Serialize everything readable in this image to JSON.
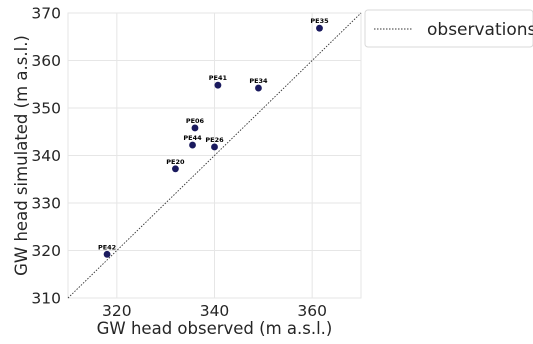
{
  "chart_data": {
    "type": "scatter",
    "title": "",
    "xlabel": "GW head observed (m a.s.l.)",
    "ylabel": "GW head simulated (m a.s.l.)",
    "xlim": [
      310,
      370
    ],
    "ylim": [
      310,
      370
    ],
    "x_ticks": [
      "320",
      "340",
      "360"
    ],
    "y_ticks": [
      "310",
      "320",
      "330",
      "340",
      "350",
      "360",
      "370"
    ],
    "grid": true,
    "legend": {
      "placement": "top-right, outside plot area",
      "entries": [
        {
          "label": "observations",
          "style": "dashed line"
        }
      ]
    },
    "identity_line": {
      "from": [
        310,
        310
      ],
      "to": [
        370,
        370
      ],
      "style": "dashed"
    },
    "point_color": "#1a1a5e",
    "points": [
      {
        "label": "PE42",
        "x": 318.0,
        "y": 319.2
      },
      {
        "label": "PE20",
        "x": 332.0,
        "y": 337.2
      },
      {
        "label": "PE44",
        "x": 335.5,
        "y": 342.2
      },
      {
        "label": "PE06",
        "x": 336.0,
        "y": 345.8
      },
      {
        "label": "PE26",
        "x": 340.0,
        "y": 341.8
      },
      {
        "label": "PE41",
        "x": 340.7,
        "y": 354.8
      },
      {
        "label": "PE34",
        "x": 349.0,
        "y": 354.2
      },
      {
        "label": "PE35",
        "x": 361.5,
        "y": 366.8
      }
    ]
  }
}
